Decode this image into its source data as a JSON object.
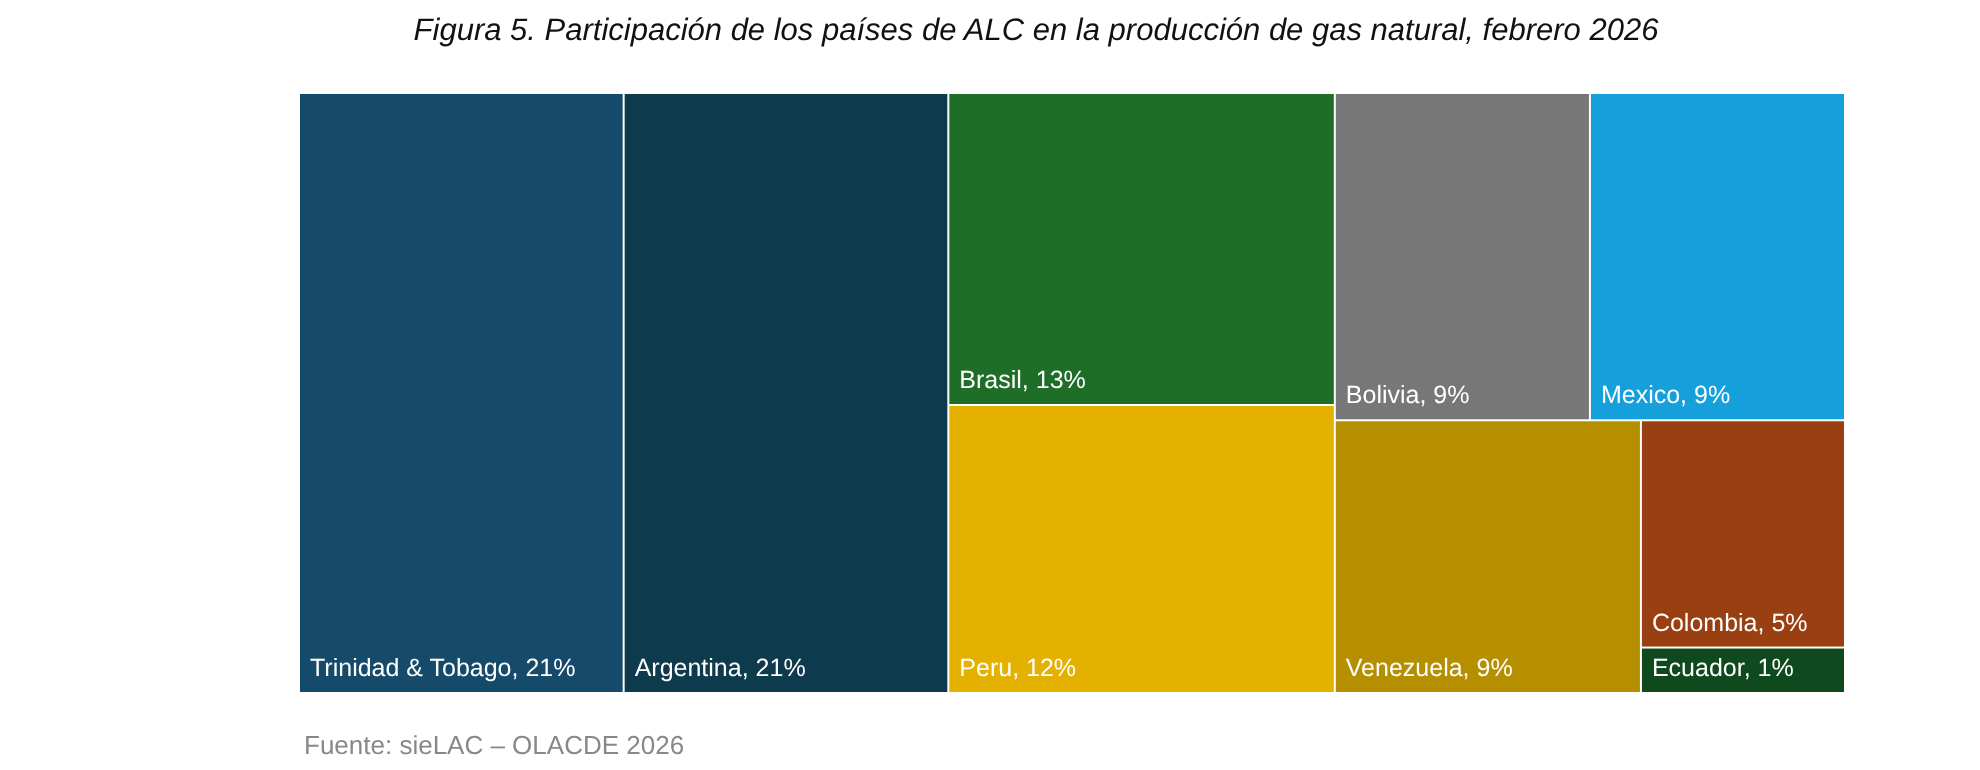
{
  "chart_data": {
    "type": "other",
    "title": "Figura 5. Participación de los países de ALC en la producción de gas natural, febrero 2026",
    "categories": [
      "Trinidad & Tobago",
      "Argentina",
      "Brasil",
      "Peru",
      "Bolivia",
      "Mexico",
      "Venezuela",
      "Colombia",
      "Ecuador"
    ],
    "values": [
      21,
      21,
      13,
      12,
      9,
      9,
      9,
      5,
      1
    ],
    "value_labels": [
      ", 21%",
      ", 21%",
      ", 13%",
      ", 12%",
      ", 9%",
      ", 9%",
      ", 9%",
      ", 5%",
      ", 1%"
    ],
    "colors": [
      "#154a6a",
      "#0e3a4e",
      "#1e6e27",
      "#e4b100",
      "#777777",
      "#15a0dc",
      "#b58f00",
      "#9a3f12",
      "#0f4a1f"
    ],
    "annotations": [
      "Fuente: sieLAC – OLACDE 2026"
    ]
  }
}
